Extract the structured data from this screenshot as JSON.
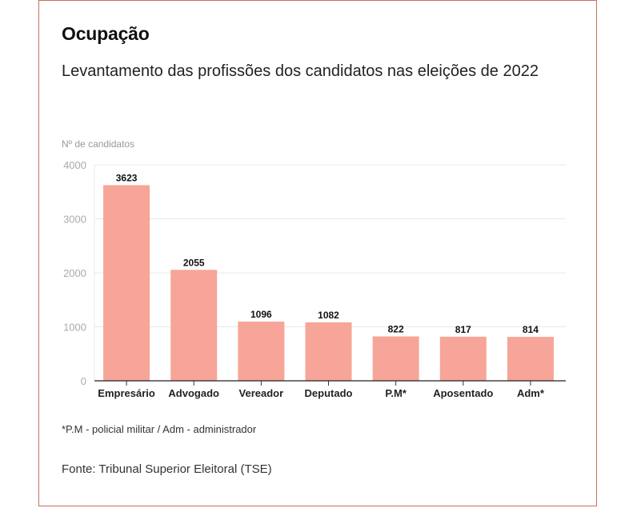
{
  "header": {
    "title": "Ocupação",
    "subtitle": "Levantamento das profissões dos candidatos nas eleições de 2022"
  },
  "footer": {
    "note": "*P.M - policial militar / Adm - administrador",
    "source": "Fonte: Tribunal Superior Eleitoral (TSE)"
  },
  "colors": {
    "bar": "#f7a598",
    "border": "#c8735c",
    "grid": "#e8e8e8",
    "tick_text": "#aaaaaa"
  },
  "chart_data": {
    "type": "bar",
    "title": "Ocupação",
    "subtitle": "Levantamento das profissões dos candidatos nas eleições de 2022",
    "xlabel": "",
    "ylabel": "Nº de candidatos",
    "categories": [
      "Empresário",
      "Advogado",
      "Vereador",
      "Deputado",
      "P.M*",
      "Aposentado",
      "Adm*"
    ],
    "values": [
      3623,
      2055,
      1096,
      1082,
      822,
      817,
      814
    ],
    "data_labels": [
      "3623",
      "2055",
      "1096",
      "1082",
      "822",
      "817",
      "814"
    ],
    "ylim": [
      0,
      4000
    ],
    "yticks": [
      0,
      1000,
      2000,
      3000,
      4000
    ],
    "ytick_labels": [
      "0",
      "1000",
      "2000",
      "3000",
      "4000"
    ],
    "grid": true,
    "legend": "none"
  }
}
